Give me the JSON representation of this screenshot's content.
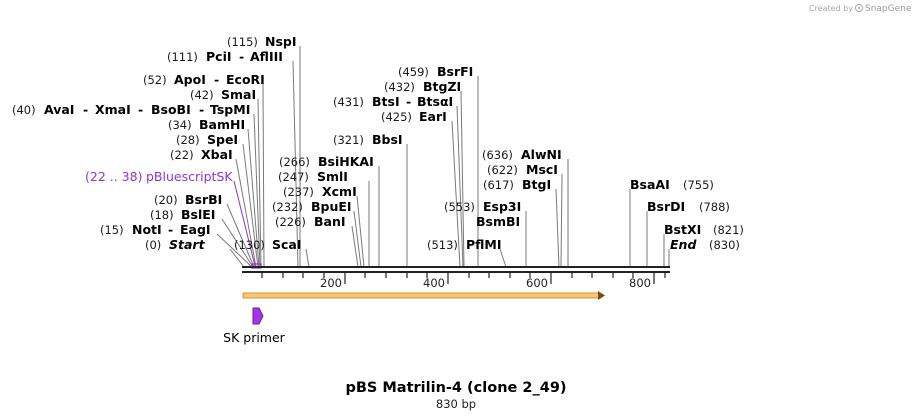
{
  "credit": {
    "prefix": "Created by",
    "brand": "SnapGene"
  },
  "map": {
    "title": "pBS Matrilin-4 (clone 2_49)",
    "length_label": "830 bp",
    "length": 830,
    "ticks": [
      "200",
      "400",
      "600",
      "800"
    ],
    "feature": {
      "range": "(22 .. 38)",
      "name": "pBluescriptSK"
    },
    "primer": {
      "name": "SK primer"
    }
  },
  "sites": [
    {
      "pos": "(0)",
      "names": [
        "Start"
      ],
      "special": true,
      "bp": 0
    },
    {
      "pos": "(15)",
      "names": [
        "NotI",
        "EagI"
      ],
      "bp": 15
    },
    {
      "pos": "(18)",
      "names": [
        "BslEI"
      ],
      "bp": 18
    },
    {
      "pos": "(20)",
      "names": [
        "BsrBI"
      ],
      "bp": 20
    },
    {
      "pos": "(22)",
      "names": [
        "XbaI"
      ],
      "bp": 22
    },
    {
      "pos": "(28)",
      "names": [
        "SpeI"
      ],
      "bp": 28
    },
    {
      "pos": "(34)",
      "names": [
        "BamHI"
      ],
      "bp": 34
    },
    {
      "pos": "(40)",
      "names": [
        "AvaI",
        "XmaI",
        "BsoBI",
        "TspMI"
      ],
      "bp": 40
    },
    {
      "pos": "(42)",
      "names": [
        "SmaI"
      ],
      "bp": 42
    },
    {
      "pos": "(52)",
      "names": [
        "ApoI",
        "EcoRI"
      ],
      "bp": 52
    },
    {
      "pos": "(111)",
      "names": [
        "PciI",
        "AflIII"
      ],
      "bp": 111
    },
    {
      "pos": "(115)",
      "names": [
        "NspI"
      ],
      "bp": 115
    },
    {
      "pos": "(130)",
      "names": [
        "ScaI"
      ],
      "bp": 130
    },
    {
      "pos": "(226)",
      "names": [
        "BanI"
      ],
      "bp": 226
    },
    {
      "pos": "(232)",
      "names": [
        "BpuEI"
      ],
      "bp": 232
    },
    {
      "pos": "(237)",
      "names": [
        "XcmI"
      ],
      "bp": 237
    },
    {
      "pos": "(247)",
      "names": [
        "SmlI"
      ],
      "bp": 247
    },
    {
      "pos": "(266)",
      "names": [
        "BsiHKAI"
      ],
      "bp": 266
    },
    {
      "pos": "(321)",
      "names": [
        "BbsI"
      ],
      "bp": 321
    },
    {
      "pos": "(425)",
      "names": [
        "EarI"
      ],
      "bp": 425
    },
    {
      "pos": "(431)",
      "names": [
        "BtsI",
        "BtsαI"
      ],
      "bp": 431
    },
    {
      "pos": "(432)",
      "names": [
        "BtgZI"
      ],
      "bp": 432
    },
    {
      "pos": "(459)",
      "names": [
        "BsrFI"
      ],
      "bp": 459
    },
    {
      "pos": "(513)",
      "names": [
        "PflMI"
      ],
      "bp": 513
    },
    {
      "pos": "(553)",
      "names": [
        "BsmBI"
      ],
      "bp": 553
    },
    {
      "pos": "(553)",
      "names": [
        "Esp3I"
      ],
      "bp": 553
    },
    {
      "pos": "(617)",
      "names": [
        "BtgI"
      ],
      "bp": 617
    },
    {
      "pos": "(622)",
      "names": [
        "MscI"
      ],
      "bp": 622
    },
    {
      "pos": "(636)",
      "names": [
        "AlwNI"
      ],
      "bp": 636
    },
    {
      "pos": "(755)",
      "names": [
        "BsaAI"
      ],
      "bp": 755
    },
    {
      "pos": "(788)",
      "names": [
        "BsrDI"
      ],
      "bp": 788
    },
    {
      "pos": "(821)",
      "names": [
        "BstXI"
      ],
      "bp": 821
    },
    {
      "pos": "(830)",
      "names": [
        "End"
      ],
      "special": true,
      "bp": 830
    }
  ]
}
